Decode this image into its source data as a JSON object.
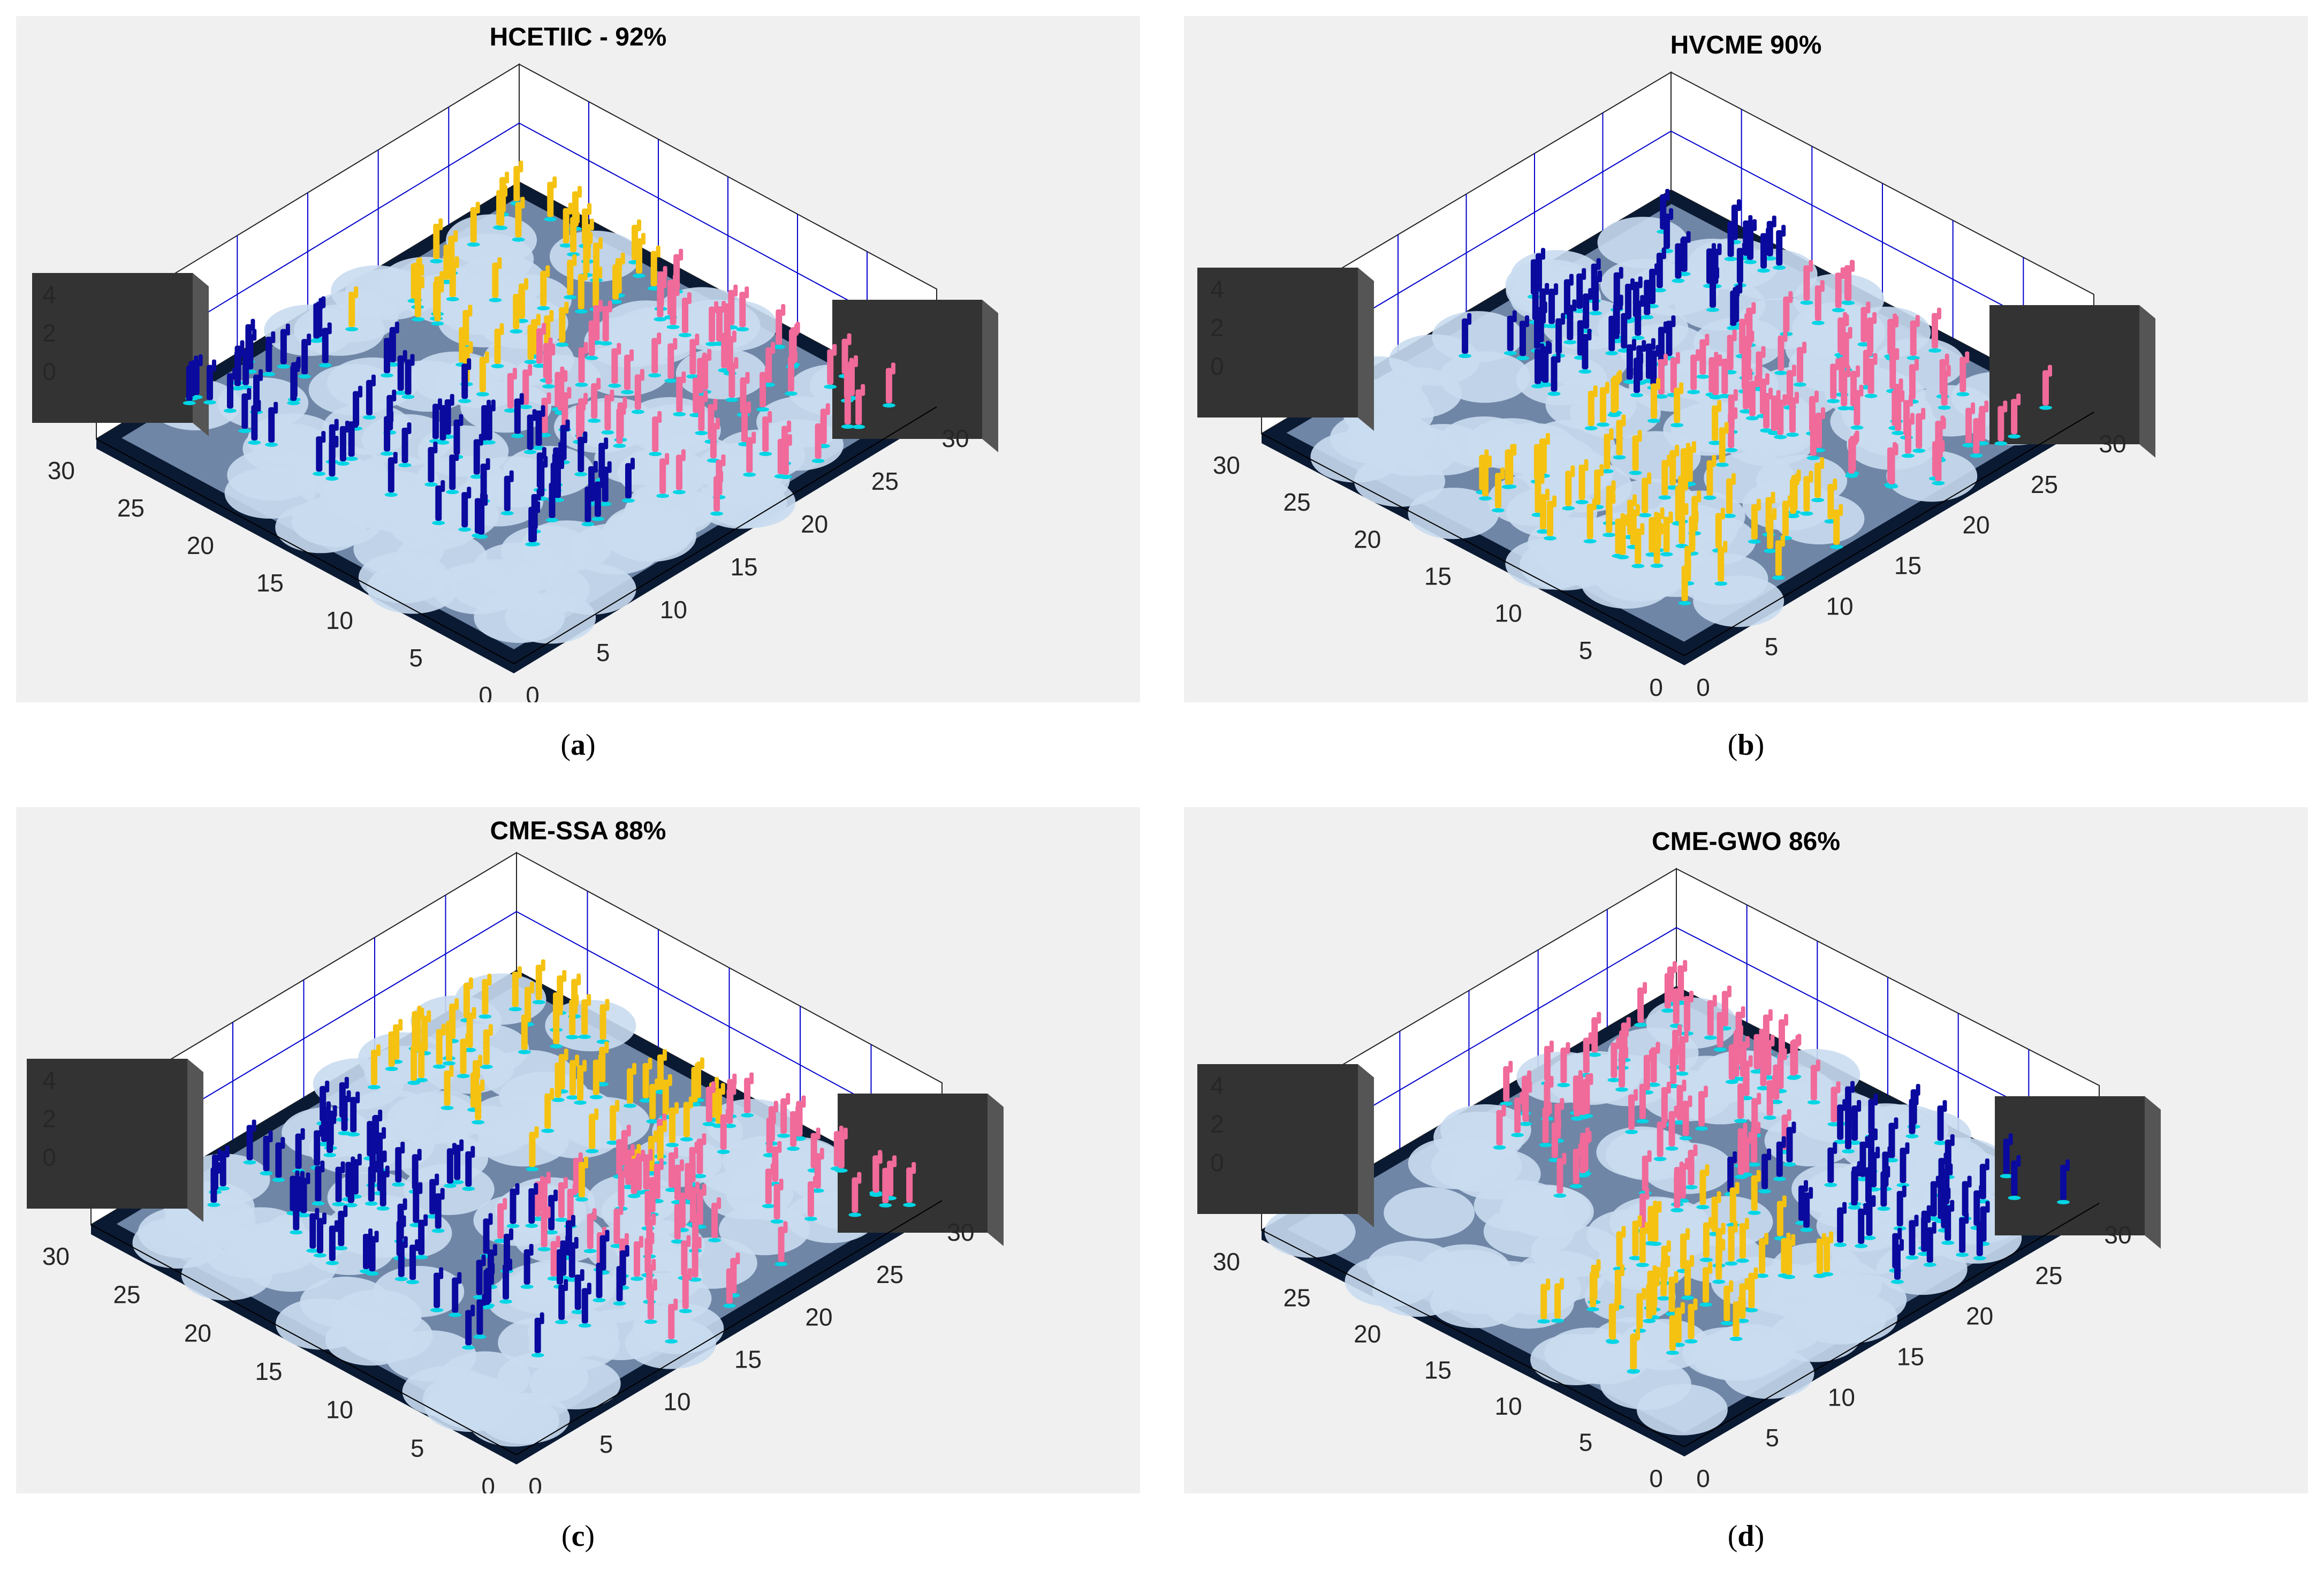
{
  "figure": {
    "captions": [
      {
        "open": "(",
        "letter": "a",
        "close": ")"
      },
      {
        "open": "(",
        "letter": "b",
        "close": ")"
      },
      {
        "open": "(",
        "letter": "c",
        "close": ")"
      },
      {
        "open": "(",
        "letter": "d",
        "close": ")"
      }
    ]
  },
  "colors": {
    "panel_bg": "#f0f0f0",
    "floor": "#c9dbf0",
    "floor_dark": "#6f86a6",
    "frame": "#0b1a33",
    "obstacle": "#333333",
    "grid": "#0000cc",
    "cluster_blue": "#0a0a9e",
    "cluster_yellow": "#f5c211",
    "cluster_pink": "#f06a9a",
    "sensor_cyan": "#00d5e5"
  },
  "chart_data": [
    {
      "type": "scatter",
      "title": "HCETIIC - 92%",
      "coverage_percent": 92,
      "x_ticks": [
        "0",
        "5",
        "10",
        "15",
        "20",
        "25",
        "30"
      ],
      "y_ticks": [
        "0",
        "5",
        "10",
        "15",
        "20",
        "25",
        "30"
      ],
      "z_ticks": [
        "0",
        "2",
        "4"
      ],
      "xlim": [
        0,
        30
      ],
      "ylim": [
        0,
        30
      ],
      "zlim": [
        0,
        4
      ],
      "series": [
        {
          "name": "cluster-blue",
          "color": "#0a0a9e",
          "x_range": [
            5,
            15
          ],
          "y_range": [
            5,
            30
          ]
        },
        {
          "name": "cluster-yellow",
          "color": "#f5c211",
          "x_range": [
            15,
            30
          ],
          "y_range": [
            18,
            30
          ]
        },
        {
          "name": "cluster-pink",
          "color": "#f06a9a",
          "x_range": [
            15,
            30
          ],
          "y_range": [
            0,
            18
          ]
        }
      ]
    },
    {
      "type": "scatter",
      "title": "HVCME 90%",
      "coverage_percent": 90,
      "x_ticks": [
        "0",
        "5",
        "10",
        "15",
        "20",
        "25",
        "30"
      ],
      "y_ticks": [
        "0",
        "5",
        "10",
        "15",
        "20",
        "25",
        "30"
      ],
      "z_ticks": [
        "0",
        "2",
        "4"
      ],
      "xlim": [
        0,
        30
      ],
      "ylim": [
        0,
        30
      ],
      "zlim": [
        0,
        4
      ],
      "series": [
        {
          "name": "cluster-blue",
          "color": "#0a0a9e",
          "x_range": [
            12,
            30
          ],
          "y_range": [
            18,
            30
          ]
        },
        {
          "name": "cluster-yellow",
          "color": "#f5c211",
          "x_range": [
            3,
            15
          ],
          "y_range": [
            0,
            18
          ]
        },
        {
          "name": "cluster-pink",
          "color": "#f06a9a",
          "x_range": [
            15,
            30
          ],
          "y_range": [
            0,
            18
          ]
        }
      ]
    },
    {
      "type": "scatter",
      "title": "CME-SSA 88%",
      "coverage_percent": 88,
      "x_ticks": [
        "0",
        "5",
        "10",
        "15",
        "20",
        "25",
        "30"
      ],
      "y_ticks": [
        "0",
        "5",
        "10",
        "15",
        "20",
        "25",
        "30"
      ],
      "z_ticks": [
        "0",
        "2",
        "4"
      ],
      "xlim": [
        0,
        30
      ],
      "ylim": [
        0,
        30
      ],
      "zlim": [
        0,
        4
      ],
      "series": [
        {
          "name": "cluster-blue",
          "color": "#0a0a9e",
          "x_range": [
            5,
            15
          ],
          "y_range": [
            5,
            30
          ]
        },
        {
          "name": "cluster-yellow",
          "color": "#f5c211",
          "x_range": [
            18,
            30
          ],
          "y_range": [
            12,
            30
          ]
        },
        {
          "name": "cluster-pink",
          "color": "#f06a9a",
          "x_range": [
            12,
            30
          ],
          "y_range": [
            0,
            14
          ]
        }
      ]
    },
    {
      "type": "scatter",
      "title": "CME-GWO 86%",
      "coverage_percent": 86,
      "x_ticks": [
        "0",
        "5",
        "10",
        "15",
        "20",
        "25",
        "30"
      ],
      "y_ticks": [
        "0",
        "5",
        "10",
        "15",
        "20",
        "25",
        "30"
      ],
      "z_ticks": [
        "0",
        "2",
        "4"
      ],
      "xlim": [
        0,
        30
      ],
      "ylim": [
        0,
        30
      ],
      "zlim": [
        0,
        4
      ],
      "series": [
        {
          "name": "cluster-pink",
          "color": "#f06a9a",
          "x_range": [
            12,
            30
          ],
          "y_range": [
            15,
            30
          ]
        },
        {
          "name": "cluster-blue",
          "color": "#0a0a9e",
          "x_range": [
            18,
            30
          ],
          "y_range": [
            0,
            15
          ]
        },
        {
          "name": "cluster-yellow",
          "color": "#f5c211",
          "x_range": [
            3,
            18
          ],
          "y_range": [
            5,
            15
          ]
        }
      ]
    }
  ]
}
